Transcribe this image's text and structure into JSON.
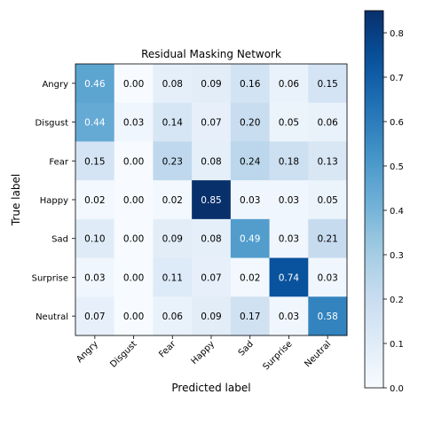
{
  "chart_data": {
    "type": "heatmap",
    "title": "Residual Masking Network",
    "xlabel": "Predicted label",
    "ylabel": "True label",
    "x_categories": [
      "Angry",
      "Disgust",
      "Fear",
      "Happy",
      "Sad",
      "Surprise",
      "Neutral"
    ],
    "y_categories": [
      "Angry",
      "Disgust",
      "Fear",
      "Happy",
      "Sad",
      "Surprise",
      "Neutral"
    ],
    "values": [
      [
        0.46,
        0.0,
        0.08,
        0.09,
        0.16,
        0.06,
        0.15
      ],
      [
        0.44,
        0.03,
        0.14,
        0.07,
        0.2,
        0.05,
        0.06
      ],
      [
        0.15,
        0.0,
        0.23,
        0.08,
        0.24,
        0.18,
        0.13
      ],
      [
        0.02,
        0.0,
        0.02,
        0.85,
        0.03,
        0.03,
        0.05
      ],
      [
        0.1,
        0.0,
        0.09,
        0.08,
        0.49,
        0.03,
        0.21
      ],
      [
        0.03,
        0.0,
        0.11,
        0.07,
        0.02,
        0.74,
        0.03
      ],
      [
        0.07,
        0.0,
        0.06,
        0.09,
        0.17,
        0.03,
        0.58
      ]
    ],
    "value_labels": [
      [
        "0.46",
        "0.00",
        "0.08",
        "0.09",
        "0.16",
        "0.06",
        "0.15"
      ],
      [
        "0.44",
        "0.03",
        "0.14",
        "0.07",
        "0.20",
        "0.05",
        "0.06"
      ],
      [
        "0.15",
        "0.00",
        "0.23",
        "0.08",
        "0.24",
        "0.18",
        "0.13"
      ],
      [
        "0.02",
        "0.00",
        "0.02",
        "0.85",
        "0.03",
        "0.03",
        "0.05"
      ],
      [
        "0.10",
        "0.00",
        "0.09",
        "0.08",
        "0.49",
        "0.03",
        "0.21"
      ],
      [
        "0.03",
        "0.00",
        "0.11",
        "0.07",
        "0.02",
        "0.74",
        "0.03"
      ],
      [
        "0.07",
        "0.00",
        "0.06",
        "0.09",
        "0.17",
        "0.03",
        "0.58"
      ]
    ],
    "colorbar": {
      "colormap": "Blues",
      "range": [
        0,
        0.85
      ],
      "ticks": [
        0.0,
        0.1,
        0.2,
        0.3,
        0.4,
        0.5,
        0.6,
        0.7,
        0.8
      ],
      "tick_labels": [
        "0.0",
        "0.1",
        "0.2",
        "0.3",
        "0.4",
        "0.5",
        "0.6",
        "0.7",
        "0.8"
      ]
    }
  }
}
